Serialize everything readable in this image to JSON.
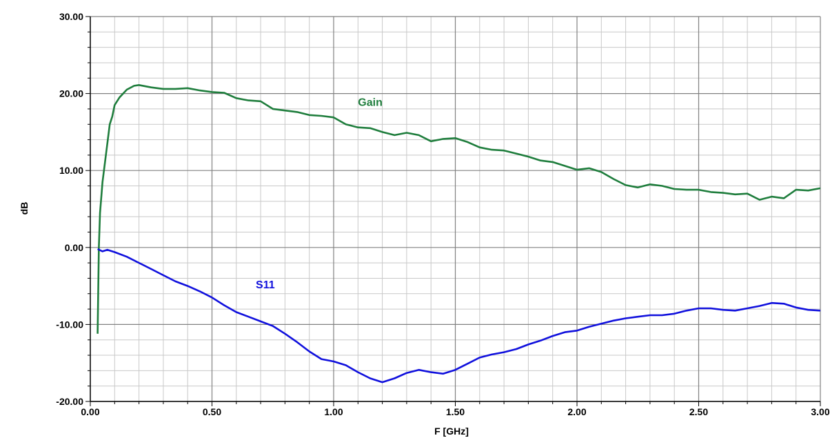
{
  "chart_data": {
    "type": "line",
    "xlabel": "F [GHz]",
    "ylabel": "dB",
    "xlim": [
      0,
      3
    ],
    "ylim": [
      -20,
      30
    ],
    "grid": true,
    "x_ticks": [
      0,
      0.5,
      1,
      1.5,
      2,
      2.5,
      3
    ],
    "x_tick_labels": [
      "0.00",
      "0.50",
      "1.00",
      "1.50",
      "2.00",
      "2.50",
      "3.00"
    ],
    "y_ticks": [
      -20,
      -10,
      0,
      10,
      20,
      30
    ],
    "y_tick_labels": [
      "-20.00",
      "-10.00",
      "0.00",
      "10.00",
      "20.00",
      "30.00"
    ],
    "colors": {
      "gain": "#1e7d3c",
      "s11": "#1010dd",
      "grid_major": "#808080",
      "grid_minor": "#c8c8c8"
    },
    "series": [
      {
        "name": "Gain",
        "label_at": [
          1.1,
          18.4
        ],
        "x": [
          0.03,
          0.035,
          0.04,
          0.05,
          0.06,
          0.07,
          0.08,
          0.09,
          0.1,
          0.12,
          0.15,
          0.18,
          0.2,
          0.25,
          0.3,
          0.35,
          0.4,
          0.45,
          0.5,
          0.55,
          0.6,
          0.65,
          0.7,
          0.75,
          0.8,
          0.85,
          0.9,
          0.95,
          1.0,
          1.05,
          1.1,
          1.15,
          1.2,
          1.25,
          1.3,
          1.35,
          1.4,
          1.45,
          1.5,
          1.55,
          1.6,
          1.65,
          1.7,
          1.75,
          1.8,
          1.85,
          1.9,
          1.95,
          2.0,
          2.05,
          2.1,
          2.15,
          2.2,
          2.25,
          2.3,
          2.35,
          2.4,
          2.45,
          2.5,
          2.55,
          2.6,
          2.65,
          2.7,
          2.75,
          2.8,
          2.85,
          2.9,
          2.95,
          3.0
        ],
        "values": [
          -11.2,
          0.0,
          4.5,
          8.5,
          11.0,
          13.5,
          16.0,
          17.0,
          18.5,
          19.5,
          20.5,
          21.0,
          21.1,
          20.8,
          20.6,
          20.6,
          20.7,
          20.4,
          20.2,
          20.1,
          19.4,
          19.1,
          19.0,
          18.0,
          17.8,
          17.6,
          17.2,
          17.1,
          16.9,
          16.0,
          15.6,
          15.5,
          15.0,
          14.6,
          14.9,
          14.6,
          13.8,
          14.1,
          14.2,
          13.7,
          13.0,
          12.7,
          12.6,
          12.2,
          11.8,
          11.3,
          11.1,
          10.6,
          10.1,
          10.3,
          9.8,
          8.9,
          8.1,
          7.8,
          8.2,
          8.0,
          7.6,
          7.5,
          7.5,
          7.2,
          7.1,
          6.9,
          7.0,
          6.2,
          6.6,
          6.4,
          7.5,
          7.4,
          7.7
        ]
      },
      {
        "name": "S11",
        "label_at": [
          0.68,
          -5.3
        ],
        "x": [
          0.03,
          0.05,
          0.07,
          0.1,
          0.15,
          0.2,
          0.25,
          0.3,
          0.35,
          0.4,
          0.45,
          0.5,
          0.55,
          0.6,
          0.65,
          0.7,
          0.75,
          0.8,
          0.85,
          0.9,
          0.95,
          1.0,
          1.05,
          1.1,
          1.15,
          1.2,
          1.25,
          1.3,
          1.35,
          1.4,
          1.45,
          1.5,
          1.55,
          1.6,
          1.65,
          1.7,
          1.75,
          1.8,
          1.85,
          1.9,
          1.95,
          2.0,
          2.05,
          2.1,
          2.15,
          2.2,
          2.25,
          2.3,
          2.35,
          2.4,
          2.45,
          2.5,
          2.55,
          2.6,
          2.65,
          2.7,
          2.75,
          2.8,
          2.85,
          2.9,
          2.95,
          3.0
        ],
        "values": [
          -0.2,
          -0.5,
          -0.3,
          -0.6,
          -1.2,
          -2.0,
          -2.8,
          -3.6,
          -4.4,
          -5.0,
          -5.7,
          -6.5,
          -7.5,
          -8.4,
          -9.0,
          -9.6,
          -10.2,
          -11.2,
          -12.3,
          -13.5,
          -14.5,
          -14.8,
          -15.3,
          -16.2,
          -17.0,
          -17.5,
          -17.0,
          -16.3,
          -15.9,
          -16.2,
          -16.4,
          -15.9,
          -15.1,
          -14.3,
          -13.9,
          -13.6,
          -13.2,
          -12.6,
          -12.1,
          -11.5,
          -11.0,
          -10.8,
          -10.3,
          -9.9,
          -9.5,
          -9.2,
          -9.0,
          -8.8,
          -8.8,
          -8.6,
          -8.2,
          -7.9,
          -7.9,
          -8.1,
          -8.2,
          -7.9,
          -7.6,
          -7.2,
          -7.3,
          -7.8,
          -8.1,
          -8.2
        ]
      }
    ]
  }
}
